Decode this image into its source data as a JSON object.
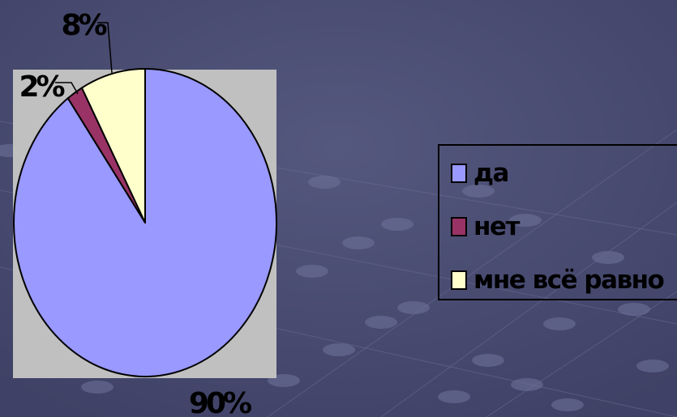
{
  "chart_data": {
    "type": "pie",
    "categories": [
      "да",
      "нет",
      "мне всё равно"
    ],
    "values": [
      90,
      2,
      8
    ],
    "data_labels": [
      "90%",
      "2%",
      "8%"
    ],
    "colors": [
      "#9999ff",
      "#993366",
      "#ffffcc"
    ],
    "legend_position": "right",
    "title": ""
  }
}
